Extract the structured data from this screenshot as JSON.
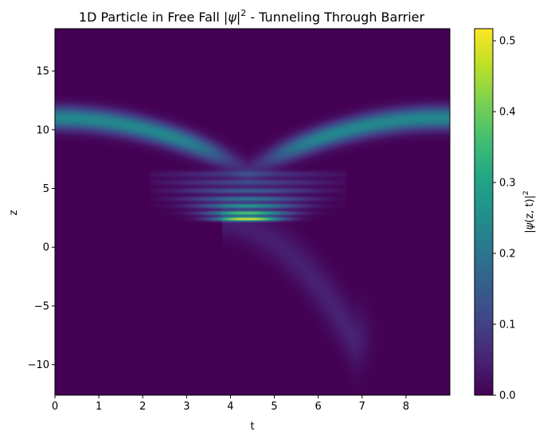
{
  "chart_data": {
    "type": "heatmap",
    "title_prefix": "1D Particle in Free Fall |",
    "title_psi": "ψ",
    "title_bar": "|",
    "title_exp": "2",
    "title_suffix": " - Tunneling Through Barrier",
    "xlabel": "t",
    "ylabel": "z",
    "xlim": [
      0,
      9.0
    ],
    "ylim": [
      -12.6,
      18.6
    ],
    "xticks": [
      0,
      1,
      2,
      3,
      4,
      5,
      6,
      7,
      8
    ],
    "yticks": [
      -10,
      -5,
      0,
      5,
      10,
      15
    ],
    "colorbar": {
      "label_prefix": "|",
      "label_psi": "ψ",
      "label_args": "(z, t)|",
      "label_exp": "2",
      "range": [
        0.0,
        0.517
      ],
      "ticks": [
        "0.0",
        "0.1",
        "0.2",
        "0.3",
        "0.4",
        "0.5"
      ],
      "colormap": "viridis"
    },
    "model": {
      "initial_z": 11.0,
      "gravity": 1.0,
      "barrier_z": 2.2,
      "bounce_t": 4.4,
      "incident_peak": 0.24,
      "interference_peak": 0.517,
      "fringe_rows_z": [
        2.4,
        2.9,
        3.5,
        4.1,
        4.8,
        5.5,
        6.2
      ],
      "transmitted_end": {
        "t": 6.8,
        "z": -7.8
      },
      "transmitted_peak": 0.05
    }
  }
}
